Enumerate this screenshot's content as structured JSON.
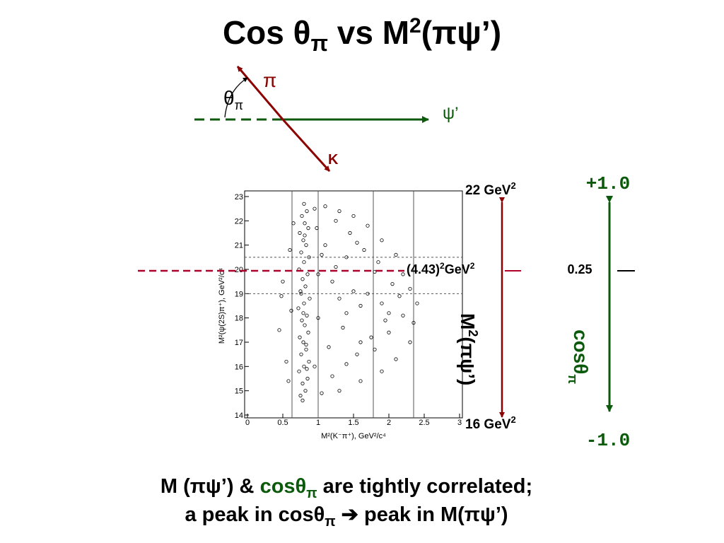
{
  "title": {
    "a": "Cos θ",
    "b": "π",
    "c": " vs M",
    "d": "2",
    "e": "(πψ’)"
  },
  "diagram": {
    "pi": "π",
    "theta": "θ",
    "theta_sub": "π",
    "psi": "ψ’",
    "k": "K"
  },
  "chart_data": {
    "type": "scatter",
    "xlabel": "M²(K⁻π⁺), GeV²/c⁴",
    "ylabel": "M²(ψ(2S)π⁺), GeV²/c⁴",
    "xlim": [
      0,
      3
    ],
    "ylim": [
      14,
      23
    ],
    "xticks": [
      0,
      0.5,
      1,
      1.5,
      2,
      2.5,
      3
    ],
    "yticks": [
      14,
      15,
      16,
      17,
      18,
      19,
      20,
      21,
      22,
      23
    ],
    "vlines": [
      0.63,
      1.0,
      1.78,
      2.35
    ],
    "hlines": [
      19.0,
      20.5
    ],
    "color": "#000000",
    "x": [
      0.75,
      0.82,
      0.78,
      0.85,
      0.73,
      0.8,
      0.87,
      0.76,
      0.83,
      0.79,
      0.74,
      0.86,
      0.81,
      0.77,
      0.84,
      0.72,
      0.8,
      0.88,
      0.75,
      0.82,
      0.78,
      0.85,
      0.73,
      0.8,
      0.87,
      0.76,
      0.83,
      0.79,
      0.74,
      0.86,
      0.81,
      0.77,
      0.84,
      0.8,
      0.78,
      0.83,
      0.76,
      0.81,
      0.79,
      0.84,
      0.45,
      0.5,
      0.55,
      0.6,
      0.62,
      0.48,
      0.58,
      0.65,
      0.95,
      1.1,
      1.3,
      1.5,
      1.7,
      1.9,
      2.1,
      2.2,
      2.3,
      2.4,
      2.35,
      2.3,
      2.1,
      1.9,
      1.6,
      1.3,
      1.05,
      1.0,
      1.2,
      1.4,
      1.6,
      1.8,
      2.0,
      1.15,
      1.35,
      1.55,
      1.75,
      1.95,
      1.1,
      1.25,
      1.45,
      1.65,
      1.85,
      2.05,
      1.0,
      1.3,
      1.5,
      1.7,
      2.15,
      0.95,
      1.2,
      1.4,
      1.6,
      1.8,
      2.0,
      2.2,
      1.05,
      1.55,
      0.98,
      1.25,
      1.4,
      1.9
    ],
    "y": [
      14.8,
      15.0,
      15.3,
      15.5,
      15.8,
      16.0,
      16.2,
      16.5,
      16.7,
      17.0,
      17.2,
      17.4,
      17.7,
      17.9,
      18.1,
      18.4,
      18.6,
      18.8,
      19.1,
      19.3,
      19.6,
      19.8,
      20.0,
      20.3,
      20.5,
      20.7,
      21.0,
      21.2,
      21.5,
      21.7,
      21.9,
      22.2,
      22.4,
      22.7,
      14.6,
      16.9,
      19.0,
      21.4,
      18.2,
      15.9,
      17.5,
      19.5,
      16.2,
      20.8,
      18.3,
      18.9,
      15.4,
      21.9,
      22.5,
      22.6,
      22.4,
      22.2,
      21.8,
      21.2,
      20.6,
      19.8,
      19.2,
      18.6,
      17.8,
      17.0,
      16.3,
      15.8,
      15.4,
      15.0,
      14.9,
      18.0,
      19.5,
      20.5,
      18.5,
      19.9,
      18.2,
      16.8,
      17.6,
      16.5,
      17.2,
      17.9,
      21.0,
      20.1,
      21.5,
      20.8,
      20.3,
      19.4,
      19.8,
      18.8,
      19.1,
      19.0,
      18.9,
      16.0,
      15.6,
      16.1,
      17.0,
      16.7,
      17.4,
      18.1,
      20.6,
      21.1,
      21.7,
      22.0,
      18.2,
      18.6
    ]
  },
  "right": {
    "top_mass": {
      "a": "22 GeV",
      "b": "2"
    },
    "bottom_mass": {
      "a": "16 GeV",
      "b": "2"
    },
    "mid_mass": {
      "a": "(4.43)",
      "b": "2",
      "c": "GeV",
      "d": "2"
    },
    "mass_axis": {
      "a": "M",
      "b": "2",
      "c": "(πψ’)"
    },
    "cos_top": "+1.0",
    "cos_bottom": "-1.0",
    "cos_mid": "0.25",
    "cos_axis": {
      "a": "cosθ",
      "b": "π"
    }
  },
  "footer": {
    "line1": {
      "a": "M (πψ’) & ",
      "b": "cosθ",
      "c": "π",
      "d": " are tightly correlated;"
    },
    "line2": {
      "a": "a peak in cosθ",
      "b": "π",
      "c": " ➔ peak in M(πψ’)"
    }
  }
}
